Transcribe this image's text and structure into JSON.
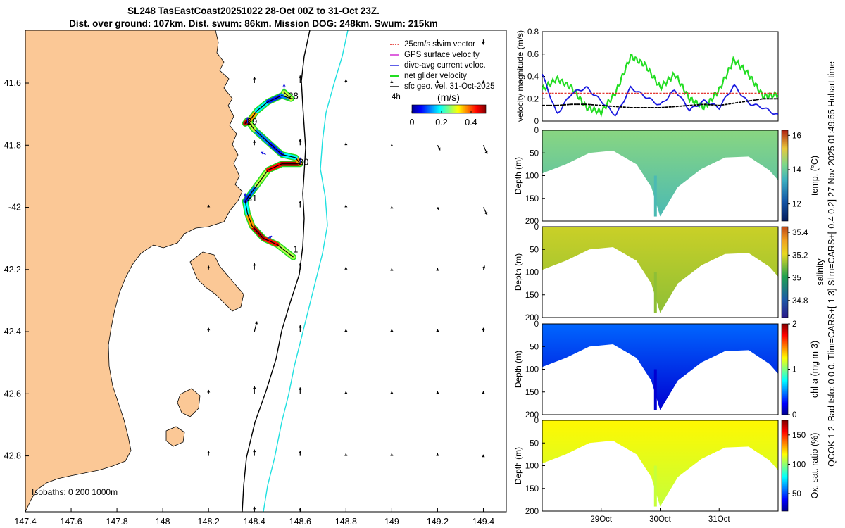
{
  "header": {
    "line1": "SL248 TasEastCoast20251022 28-Oct 00Z to 31-Oct 23Z.",
    "line2": "Dist. over ground: 107km. Dist. swum: 86km. Mission DOG: 248km. Swum: 215km"
  },
  "side_caption": "QCOK 1 2. Bad tsfo: 0 0 0. Tlim=CARS+[-1 3] Slim=CARS+[-0.4 0.2] 27-Nov-2025 01:49:55 Hobart time",
  "colors": {
    "land": "#fbc896",
    "swim_ref": "#e0201a",
    "gps": "#d020d0",
    "dive_avg": "#1a1adf",
    "net": "#22dd22",
    "sfc": "#000000",
    "shelf_200": "#000000",
    "shelf_1000": "#20e0e0"
  },
  "chart_data": [
    {
      "id": "map",
      "type": "scatter",
      "xlim": [
        147.4,
        149.5
      ],
      "ylim": [
        -42.98,
        -41.43
      ],
      "xticks": [
        147.4,
        147.6,
        147.8,
        148,
        148.2,
        148.4,
        148.6,
        148.8,
        149,
        149.2,
        149.4
      ],
      "xtick_labels": [
        "147.4",
        "147.6",
        "147.8",
        "148",
        "148.2",
        "148.4",
        "148.6",
        "148.8",
        "149",
        "149.2",
        "149.4"
      ],
      "yticks": [
        -41.6,
        -41.8,
        -42,
        -42.2,
        -42.4,
        -42.6,
        -42.8
      ],
      "ytick_labels": [
        "41.6",
        "41.8",
        "-42",
        "42.2",
        "42.4",
        "42.6",
        "42.8"
      ],
      "legend": {
        "position": "top-right",
        "items": [
          {
            "label": "25cm/s swim vector",
            "color": "#e0201a"
          },
          {
            "label": "GPS surface velocity",
            "color": "#d020d0"
          },
          {
            "label": "dive-avg current veloc.",
            "color": "#1a1adf"
          },
          {
            "label": "net glider velocity",
            "color": "#22dd22"
          },
          {
            "label": "sfc geo. vel. 31-Oct-2025",
            "color": "#000000"
          }
        ],
        "interval_label": "4h"
      },
      "colorbar": {
        "title": "(m/s)",
        "min": 0,
        "max": 0.5,
        "ticks": [
          0,
          0.2,
          0.4
        ],
        "tick_labels": [
          "0",
          "0.2",
          "0.4"
        ]
      },
      "isobaths_label": "Isobaths: 0   200  1000m",
      "track": {
        "lon": [
          148.57,
          148.5,
          148.44,
          148.39,
          148.37,
          148.36,
          148.38,
          148.41,
          148.46,
          148.52,
          148.6,
          148.58,
          148.52,
          148.46,
          148.4,
          148.37,
          148.36,
          148.38,
          148.41,
          148.46,
          148.52,
          148.56,
          148.53
        ],
        "lat": [
          -42.16,
          -42.12,
          -42.1,
          -42.06,
          -42.02,
          -41.98,
          -41.96,
          -41.93,
          -41.88,
          -41.86,
          -41.86,
          -41.84,
          -41.83,
          -41.79,
          -41.75,
          -41.72,
          -41.73,
          -41.72,
          -41.69,
          -41.66,
          -41.64,
          -41.65,
          -41.63
        ],
        "day_labels": [
          {
            "text": "28",
            "lon": 148.57,
            "lat": -41.642
          },
          {
            "text": "29",
            "lon": 148.39,
            "lat": -41.725
          },
          {
            "text": "30",
            "lon": 148.615,
            "lat": -41.855
          },
          {
            "text": "31",
            "lon": 148.39,
            "lat": -41.972
          },
          {
            "text": "1",
            "lon": 148.58,
            "lat": -42.136
          }
        ]
      },
      "dive_avg_vectors": [
        {
          "lon": 148.53,
          "lat": -41.635,
          "u": 0.0,
          "v": 0.08
        },
        {
          "lon": 148.37,
          "lat": -41.73,
          "u": 0.0,
          "v": 0.05
        },
        {
          "lon": 148.45,
          "lat": -41.83,
          "u": -0.04,
          "v": 0.02
        },
        {
          "lon": 148.6,
          "lat": -41.86,
          "u": 0.0,
          "v": 0.05
        },
        {
          "lon": 148.36,
          "lat": -41.975,
          "u": 0.0,
          "v": 0.05
        },
        {
          "lon": 148.46,
          "lat": -42.1,
          "u": 0.03,
          "v": 0.02
        }
      ],
      "sfc_geo_vel": [
        {
          "lon": 148.4,
          "lat": -41.6,
          "u": 0.0,
          "v": 0.05
        },
        {
          "lon": 148.6,
          "lat": -41.6,
          "u": 0.0,
          "v": 0.06
        },
        {
          "lon": 148.8,
          "lat": -41.6,
          "u": 0.0,
          "v": 0.03
        },
        {
          "lon": 149.0,
          "lat": -41.6,
          "u": 0.0,
          "v": 0.02
        },
        {
          "lon": 149.2,
          "lat": -41.6,
          "u": 0.0,
          "v": 0.02
        },
        {
          "lon": 149.4,
          "lat": -41.6,
          "u": 0.0,
          "v": 0.02
        },
        {
          "lon": 148.4,
          "lat": -41.8,
          "u": 0.0,
          "v": 0.04
        },
        {
          "lon": 148.6,
          "lat": -41.8,
          "u": 0.0,
          "v": 0.05
        },
        {
          "lon": 148.8,
          "lat": -41.8,
          "u": 0.0,
          "v": 0.02
        },
        {
          "lon": 149.0,
          "lat": -41.8,
          "u": 0.0,
          "v": 0.01
        },
        {
          "lon": 149.2,
          "lat": -41.8,
          "u": 0.02,
          "v": -0.04
        },
        {
          "lon": 149.4,
          "lat": -41.8,
          "u": 0.03,
          "v": -0.07
        },
        {
          "lon": 148.2,
          "lat": -42.0,
          "u": 0.0,
          "v": 0.02
        },
        {
          "lon": 148.6,
          "lat": -42.0,
          "u": 0.0,
          "v": 0.05
        },
        {
          "lon": 148.8,
          "lat": -42.0,
          "u": 0.0,
          "v": 0.02
        },
        {
          "lon": 149.0,
          "lat": -42.0,
          "u": 0.0,
          "v": 0.01
        },
        {
          "lon": 149.2,
          "lat": -42.0,
          "u": 0.01,
          "v": -0.02
        },
        {
          "lon": 149.4,
          "lat": -42.0,
          "u": 0.03,
          "v": -0.06
        },
        {
          "lon": 148.2,
          "lat": -42.2,
          "u": 0.0,
          "v": 0.03
        },
        {
          "lon": 148.4,
          "lat": -42.2,
          "u": 0.0,
          "v": 0.05
        },
        {
          "lon": 148.6,
          "lat": -42.2,
          "u": 0.0,
          "v": 0.05
        },
        {
          "lon": 148.8,
          "lat": -42.2,
          "u": 0.0,
          "v": 0.02
        },
        {
          "lon": 149.0,
          "lat": -42.2,
          "u": 0.0,
          "v": 0.01
        },
        {
          "lon": 149.2,
          "lat": -42.2,
          "u": 0.0,
          "v": 0.01
        },
        {
          "lon": 149.4,
          "lat": -42.2,
          "u": 0.01,
          "v": 0.03
        },
        {
          "lon": 148.2,
          "lat": -42.4,
          "u": 0.0,
          "v": 0.03
        },
        {
          "lon": 148.4,
          "lat": -42.4,
          "u": 0.02,
          "v": 0.08
        },
        {
          "lon": 148.6,
          "lat": -42.4,
          "u": 0.0,
          "v": 0.05
        },
        {
          "lon": 148.8,
          "lat": -42.4,
          "u": 0.0,
          "v": 0.02
        },
        {
          "lon": 149.0,
          "lat": -42.4,
          "u": 0.0,
          "v": 0.02
        },
        {
          "lon": 149.2,
          "lat": -42.4,
          "u": 0.0,
          "v": 0.02
        },
        {
          "lon": 149.4,
          "lat": -42.4,
          "u": 0.0,
          "v": 0.03
        },
        {
          "lon": 148.2,
          "lat": -42.6,
          "u": 0.0,
          "v": 0.03
        },
        {
          "lon": 148.4,
          "lat": -42.6,
          "u": 0.0,
          "v": 0.06
        },
        {
          "lon": 148.6,
          "lat": -42.6,
          "u": 0.0,
          "v": 0.05
        },
        {
          "lon": 148.8,
          "lat": -42.6,
          "u": 0.0,
          "v": 0.02
        },
        {
          "lon": 149.0,
          "lat": -42.6,
          "u": 0.0,
          "v": 0.02
        },
        {
          "lon": 149.2,
          "lat": -42.6,
          "u": 0.0,
          "v": 0.02
        },
        {
          "lon": 149.4,
          "lat": -42.6,
          "u": 0.0,
          "v": 0.02
        },
        {
          "lon": 148.2,
          "lat": -42.8,
          "u": 0.0,
          "v": 0.04
        },
        {
          "lon": 148.4,
          "lat": -42.8,
          "u": 0.0,
          "v": 0.05
        },
        {
          "lon": 148.6,
          "lat": -42.8,
          "u": 0.0,
          "v": 0.04
        },
        {
          "lon": 148.8,
          "lat": -42.8,
          "u": 0.0,
          "v": 0.02
        },
        {
          "lon": 149.0,
          "lat": -42.8,
          "u": 0.0,
          "v": 0.02
        },
        {
          "lon": 149.2,
          "lat": -42.8,
          "u": 0.0,
          "v": 0.02
        },
        {
          "lon": 149.4,
          "lat": -42.8,
          "u": 0.0,
          "v": 0.01
        },
        {
          "lon": 148.4,
          "lat": -42.98,
          "u": 0.0,
          "v": 0.04
        },
        {
          "lon": 148.6,
          "lat": -42.98,
          "u": 0.0,
          "v": 0.03
        },
        {
          "lon": 149.2,
          "lat": -41.46,
          "u": 0.0,
          "v": -0.04
        },
        {
          "lon": 149.4,
          "lat": -41.46,
          "u": 0.0,
          "v": -0.04
        }
      ]
    },
    {
      "id": "velocity",
      "type": "line",
      "xlim": [
        28.0,
        32.0
      ],
      "ylim": [
        0,
        0.8
      ],
      "yticks": [
        0,
        0.2,
        0.4,
        0.6,
        0.8
      ],
      "ytick_labels": [
        "0",
        "0.2",
        "0.4",
        "0.6",
        "0.8"
      ],
      "ylabel": "velocity magnitude (m/s)",
      "x": [
        28.0,
        28.25,
        28.5,
        28.75,
        29.0,
        29.25,
        29.5,
        29.75,
        30.0,
        30.25,
        30.5,
        30.75,
        31.0,
        31.25,
        31.5,
        31.75,
        32.0
      ],
      "series": [
        {
          "name": "net glider velocity",
          "color": "#22dd22",
          "values": [
            0.28,
            0.38,
            0.3,
            0.12,
            0.08,
            0.26,
            0.58,
            0.5,
            0.3,
            0.42,
            0.2,
            0.12,
            0.28,
            0.55,
            0.42,
            0.22,
            0.24
          ]
        },
        {
          "name": "dive-avg current veloc.",
          "color": "#1a1adf",
          "values": [
            0.42,
            0.06,
            0.25,
            0.3,
            0.18,
            0.05,
            0.3,
            0.22,
            0.14,
            0.28,
            0.1,
            0.18,
            0.12,
            0.32,
            0.16,
            0.12,
            0.05
          ]
        },
        {
          "name": "sfc geo. vel.",
          "color": "#000000",
          "values": [
            0.14,
            0.14,
            0.15,
            0.15,
            0.14,
            0.13,
            0.12,
            0.12,
            0.12,
            0.13,
            0.14,
            0.15,
            0.14,
            0.16,
            0.18,
            0.2,
            0.2
          ]
        },
        {
          "name": "25cm/s swim vector",
          "color": "#e0201a",
          "values": [
            0.25,
            0.25,
            0.25,
            0.25,
            0.25,
            0.25,
            0.25,
            0.25,
            0.25,
            0.25,
            0.25,
            0.25,
            0.25,
            0.25,
            0.25,
            0.25,
            0.25
          ]
        }
      ]
    },
    {
      "id": "temp",
      "type": "heatmap",
      "variable": "temp. (°C)",
      "ylabel": "Depth (m)",
      "ylim": [
        200,
        0
      ],
      "yticks": [
        0,
        50,
        100,
        150,
        200
      ],
      "ytick_labels": [
        "0",
        "50",
        "100",
        "150",
        "200"
      ],
      "clim": [
        11,
        16.3
      ],
      "cticks": [
        12,
        14,
        16
      ],
      "ctick_labels": [
        "12",
        "14",
        "16"
      ],
      "time": [
        28.0,
        28.4,
        28.8,
        29.2,
        29.6,
        29.85,
        30.0,
        30.3,
        30.7,
        31.1,
        31.5,
        31.85,
        32.0
      ],
      "max_depth": [
        95,
        75,
        50,
        45,
        75,
        125,
        190,
        125,
        85,
        60,
        58,
        88,
        110
      ],
      "surface_value": 14.4,
      "deep_value": 13.6
    },
    {
      "id": "salinity",
      "type": "heatmap",
      "variable": "salinity",
      "ylabel": "Depth (m)",
      "ylim": [
        200,
        0
      ],
      "yticks": [
        0,
        50,
        100,
        150,
        200
      ],
      "ytick_labels": [
        "0",
        "50",
        "100",
        "150",
        "200"
      ],
      "clim": [
        34.65,
        35.45
      ],
      "cticks": [
        34.8,
        35,
        35.2,
        35.4
      ],
      "ctick_labels": [
        "34.8",
        "35",
        "35.2",
        "35.4"
      ],
      "time": [
        28.0,
        28.4,
        28.8,
        29.2,
        29.6,
        29.85,
        30.0,
        30.3,
        30.7,
        31.1,
        31.5,
        31.85,
        32.0
      ],
      "max_depth": [
        95,
        75,
        50,
        45,
        75,
        125,
        190,
        125,
        85,
        60,
        58,
        88,
        110
      ],
      "surface_value": 35.18,
      "deep_value": 35.12
    },
    {
      "id": "chla",
      "type": "heatmap",
      "variable": "chl-a (mg m-3)",
      "ylabel": "Depth (m)",
      "ylim": [
        200,
        0
      ],
      "yticks": [
        0,
        50,
        100,
        150,
        200
      ],
      "ytick_labels": [
        "0",
        "50",
        "100",
        "150",
        "200"
      ],
      "clim": [
        0,
        2
      ],
      "cticks": [
        0,
        1,
        2
      ],
      "ctick_labels": [
        "0",
        "1",
        "2"
      ],
      "time": [
        28.0,
        28.4,
        28.8,
        29.2,
        29.6,
        29.85,
        30.0,
        30.3,
        30.7,
        31.1,
        31.5,
        31.85,
        32.0
      ],
      "max_depth": [
        95,
        75,
        50,
        45,
        75,
        125,
        190,
        125,
        85,
        60,
        58,
        88,
        110
      ],
      "surface_value": 0.45,
      "deep_value": 0.15
    },
    {
      "id": "oxygen",
      "type": "heatmap",
      "variable": "Ox. sat. ratio (%)",
      "ylabel": "Depth (m)",
      "ylim": [
        200,
        0
      ],
      "yticks": [
        0,
        50,
        100,
        150,
        200
      ],
      "ytick_labels": [
        "0",
        "50",
        "100",
        "150",
        "200"
      ],
      "clim": [
        20,
        175
      ],
      "cticks": [
        50,
        100,
        150
      ],
      "ctick_labels": [
        "50",
        "100",
        "150"
      ],
      "time": [
        28.0,
        28.4,
        28.8,
        29.2,
        29.6,
        29.85,
        30.0,
        30.3,
        30.7,
        31.1,
        31.5,
        31.85,
        32.0
      ],
      "max_depth": [
        95,
        75,
        50,
        45,
        75,
        125,
        190,
        125,
        85,
        60,
        58,
        88,
        110
      ],
      "surface_value": 118,
      "deep_value": 108
    },
    {
      "id": "time_axis",
      "type": "line",
      "xlim": [
        28.0,
        32.0
      ],
      "xticks": [
        29.0,
        30.0,
        31.0
      ],
      "xtick_labels": [
        "29Oct",
        "30Oct",
        "31Oct"
      ]
    }
  ]
}
